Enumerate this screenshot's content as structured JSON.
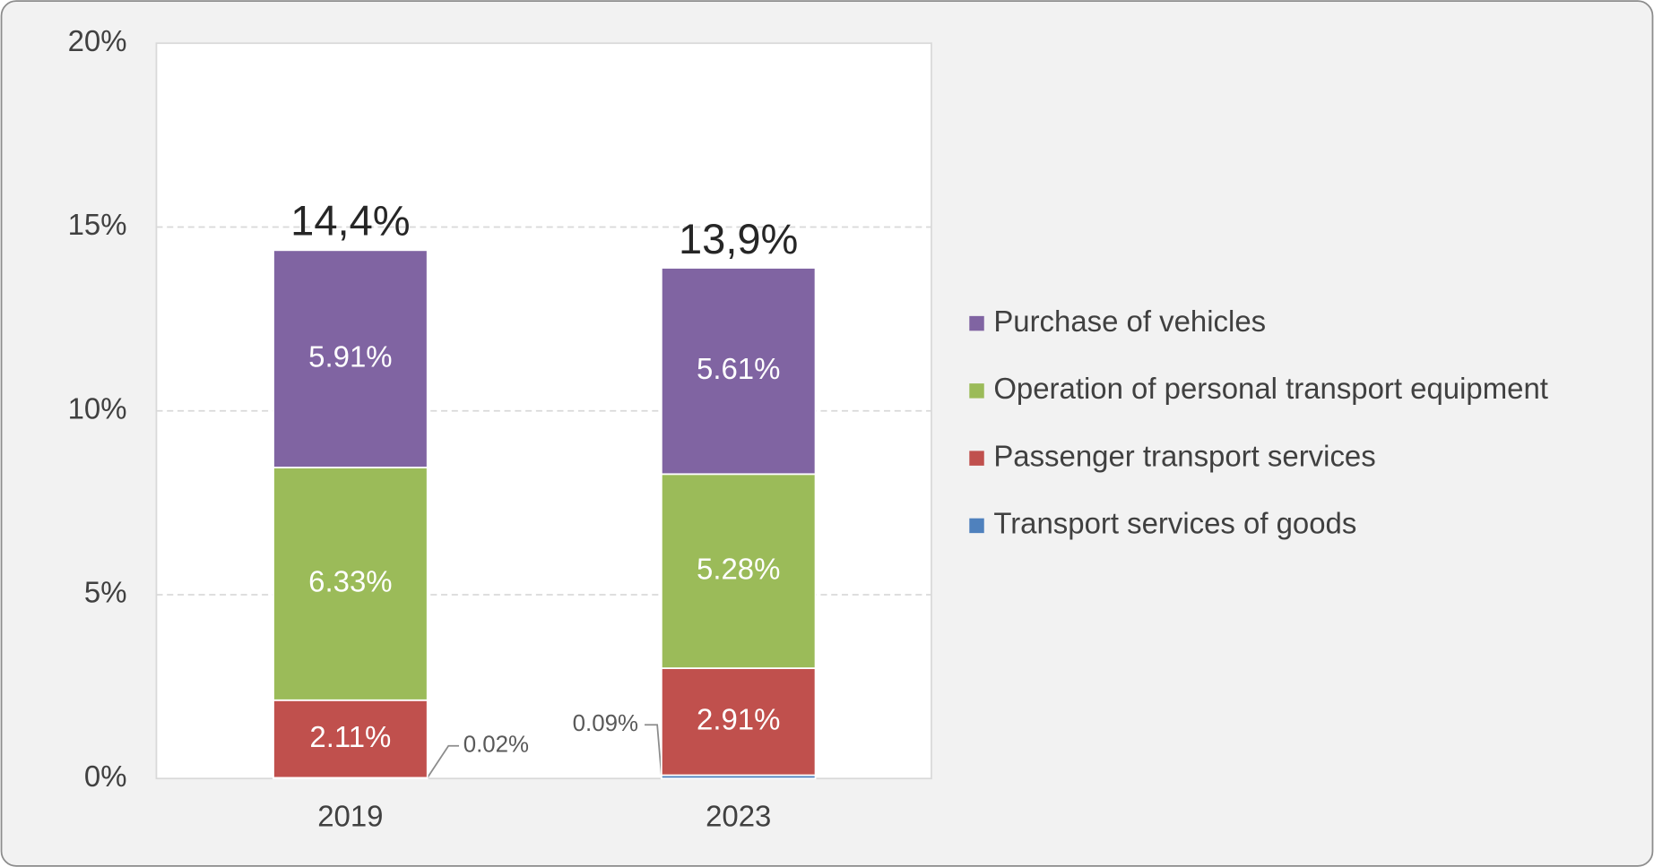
{
  "chart_data": {
    "type": "stacked_bar",
    "categories": [
      "2019",
      "2023"
    ],
    "series": [
      {
        "name": "Transport services of goods",
        "color": "#4f81bd",
        "values": [
          0.02,
          0.09
        ],
        "value_labels": [
          "0.02%",
          "0.09%"
        ]
      },
      {
        "name": "Passenger transport services",
        "color": "#c0504d",
        "values": [
          2.11,
          2.91
        ],
        "value_labels": [
          "2.11%",
          "2.91%"
        ]
      },
      {
        "name": "Operation of personal transport equipment",
        "color": "#9bbb59",
        "values": [
          6.33,
          5.28
        ],
        "value_labels": [
          "6.33%",
          "5.28%"
        ]
      },
      {
        "name": "Purchase of vehicles",
        "color": "#8064a2",
        "values": [
          5.91,
          5.61
        ],
        "value_labels": [
          "5.91%",
          "5.61%"
        ]
      }
    ],
    "totals": [
      14.4,
      13.9
    ],
    "total_labels": [
      "14,4%",
      "13,9%"
    ],
    "ylim": [
      0,
      20
    ],
    "yticks": [
      {
        "value": 0,
        "label": "0%"
      },
      {
        "value": 5,
        "label": "5%"
      },
      {
        "value": 10,
        "label": "10%"
      },
      {
        "value": 15,
        "label": "15%"
      },
      {
        "value": 20,
        "label": "20%"
      }
    ],
    "grid": true,
    "legend": "right"
  }
}
